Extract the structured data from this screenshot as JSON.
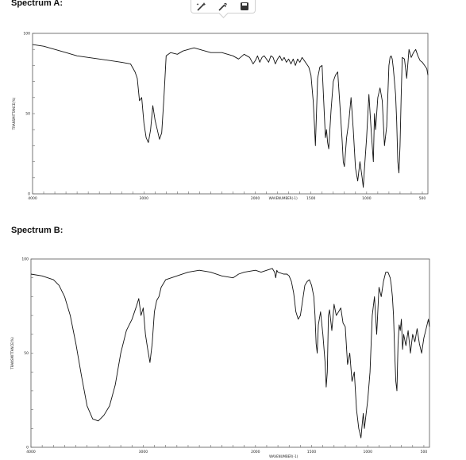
{
  "page": {
    "heading_a": "Spectrum A:",
    "heading_b": "Spectrum B:"
  },
  "toolbar": {
    "icons": [
      "edit-sparkle-icon",
      "edit-question-icon",
      "save-icon"
    ]
  },
  "chart_data": [
    {
      "type": "line",
      "title": "",
      "xlabel": "WAVENUMBER(-1)",
      "ylabel": "TRANSMITTANCE(%)",
      "x_ticks": [
        4000,
        3000,
        2000,
        1500,
        1000,
        500
      ],
      "x_tick_labels": [
        "4000",
        "3000",
        "2000",
        "1500",
        "1000",
        "500"
      ],
      "y_tick_labels": [
        "0",
        "50",
        "100"
      ],
      "xlim": [
        4000,
        450
      ],
      "ylim": [
        0,
        100
      ],
      "x": [
        4000,
        3900,
        3800,
        3700,
        3600,
        3500,
        3400,
        3300,
        3200,
        3120,
        3080,
        3060,
        3040,
        3020,
        3000,
        2980,
        2960,
        2940,
        2920,
        2900,
        2880,
        2860,
        2840,
        2820,
        2800,
        2760,
        2700,
        2650,
        2600,
        2550,
        2500,
        2450,
        2400,
        2300,
        2200,
        2150,
        2100,
        2050,
        2020,
        2000,
        1980,
        1960,
        1940,
        1920,
        1900,
        1880,
        1860,
        1840,
        1820,
        1800,
        1780,
        1760,
        1740,
        1720,
        1700,
        1680,
        1660,
        1640,
        1620,
        1600,
        1580,
        1560,
        1540,
        1520,
        1500,
        1480,
        1470,
        1460,
        1440,
        1420,
        1400,
        1380,
        1370,
        1360,
        1350,
        1340,
        1320,
        1300,
        1280,
        1260,
        1240,
        1220,
        1210,
        1200,
        1180,
        1160,
        1140,
        1120,
        1100,
        1080,
        1060,
        1050,
        1040,
        1030,
        1020,
        1000,
        980,
        960,
        940,
        930,
        920,
        900,
        880,
        860,
        840,
        820,
        800,
        790,
        780,
        770,
        760,
        750,
        740,
        730,
        720,
        710,
        700,
        690,
        680,
        660,
        640,
        620,
        600,
        580,
        560,
        540,
        520,
        500,
        480,
        460,
        450
      ],
      "y": [
        93,
        92,
        90,
        88,
        86,
        85,
        84,
        83,
        82,
        81,
        76,
        72,
        58,
        60,
        44,
        35,
        32,
        40,
        55,
        46,
        40,
        34,
        38,
        60,
        86,
        88,
        87,
        89,
        90,
        91,
        90,
        89,
        88,
        88,
        86,
        84,
        87,
        85,
        81,
        83,
        86,
        82,
        85,
        86,
        84,
        82,
        86,
        85,
        81,
        84,
        86,
        83,
        85,
        82,
        84,
        81,
        84,
        80,
        84,
        82,
        85,
        83,
        81,
        79,
        74,
        58,
        45,
        30,
        72,
        79,
        80,
        50,
        35,
        40,
        32,
        28,
        52,
        70,
        74,
        76,
        55,
        33,
        20,
        17,
        35,
        45,
        60,
        40,
        16,
        8,
        20,
        15,
        10,
        4,
        15,
        35,
        62,
        40,
        20,
        50,
        40,
        60,
        66,
        58,
        30,
        42,
        80,
        85,
        86,
        84,
        78,
        70,
        62,
        45,
        20,
        13,
        30,
        60,
        85,
        84,
        72,
        90,
        85,
        88,
        90,
        86,
        83,
        82,
        80,
        78,
        74
      ]
    },
    {
      "type": "line",
      "title": "",
      "xlabel": "",
      "ylabel": "TRANSMITTANCE(%)",
      "x_ticks": [
        4000,
        3000,
        2000,
        1500,
        1000,
        500
      ],
      "x_tick_labels": [
        "4000",
        "3000",
        "2000",
        "1500",
        "1000",
        "500"
      ],
      "y_tick_labels": [
        "0",
        "50",
        "100"
      ],
      "xlim": [
        4000,
        450
      ],
      "ylim": [
        0,
        100
      ],
      "x": [
        4000,
        3900,
        3800,
        3750,
        3700,
        3650,
        3600,
        3550,
        3500,
        3450,
        3400,
        3350,
        3300,
        3250,
        3200,
        3150,
        3100,
        3060,
        3040,
        3020,
        3000,
        2980,
        2960,
        2940,
        2920,
        2900,
        2880,
        2860,
        2840,
        2800,
        2750,
        2700,
        2600,
        2500,
        2400,
        2300,
        2200,
        2150,
        2100,
        2000,
        1950,
        1900,
        1850,
        1830,
        1820,
        1810,
        1800,
        1750,
        1720,
        1700,
        1680,
        1660,
        1640,
        1620,
        1600,
        1580,
        1560,
        1540,
        1520,
        1500,
        1480,
        1470,
        1460,
        1450,
        1440,
        1420,
        1400,
        1380,
        1370,
        1360,
        1350,
        1340,
        1320,
        1300,
        1280,
        1260,
        1240,
        1220,
        1200,
        1180,
        1160,
        1140,
        1120,
        1100,
        1080,
        1060,
        1050,
        1040,
        1030,
        1020,
        1000,
        980,
        960,
        940,
        920,
        900,
        880,
        860,
        840,
        820,
        800,
        790,
        780,
        770,
        760,
        750,
        740,
        730,
        720,
        710,
        700,
        690,
        680,
        660,
        640,
        620,
        600,
        580,
        560,
        540,
        520,
        500,
        480,
        460,
        450
      ],
      "y": [
        92,
        91,
        89,
        86,
        80,
        70,
        55,
        38,
        22,
        15,
        14,
        17,
        22,
        33,
        50,
        62,
        68,
        75,
        79,
        70,
        74,
        60,
        52,
        45,
        55,
        72,
        78,
        80,
        85,
        89,
        90,
        91,
        93,
        94,
        93,
        91,
        90,
        92,
        93,
        94,
        93,
        94,
        95,
        93,
        90,
        94,
        93,
        92,
        92,
        91,
        88,
        82,
        72,
        68,
        70,
        78,
        86,
        88,
        89,
        86,
        80,
        70,
        55,
        50,
        65,
        72,
        60,
        45,
        32,
        40,
        70,
        73,
        62,
        76,
        70,
        72,
        74,
        66,
        64,
        44,
        50,
        35,
        40,
        20,
        10,
        5,
        12,
        18,
        10,
        15,
        25,
        40,
        70,
        80,
        60,
        85,
        80,
        88,
        93,
        93,
        90,
        86,
        80,
        70,
        50,
        35,
        30,
        55,
        65,
        62,
        68,
        52,
        60,
        54,
        62,
        50,
        60,
        56,
        63,
        55,
        50,
        58,
        63,
        68,
        64
      ],
      "inline_labels": [
        "WAVENUMBER(-1)"
      ]
    }
  ]
}
